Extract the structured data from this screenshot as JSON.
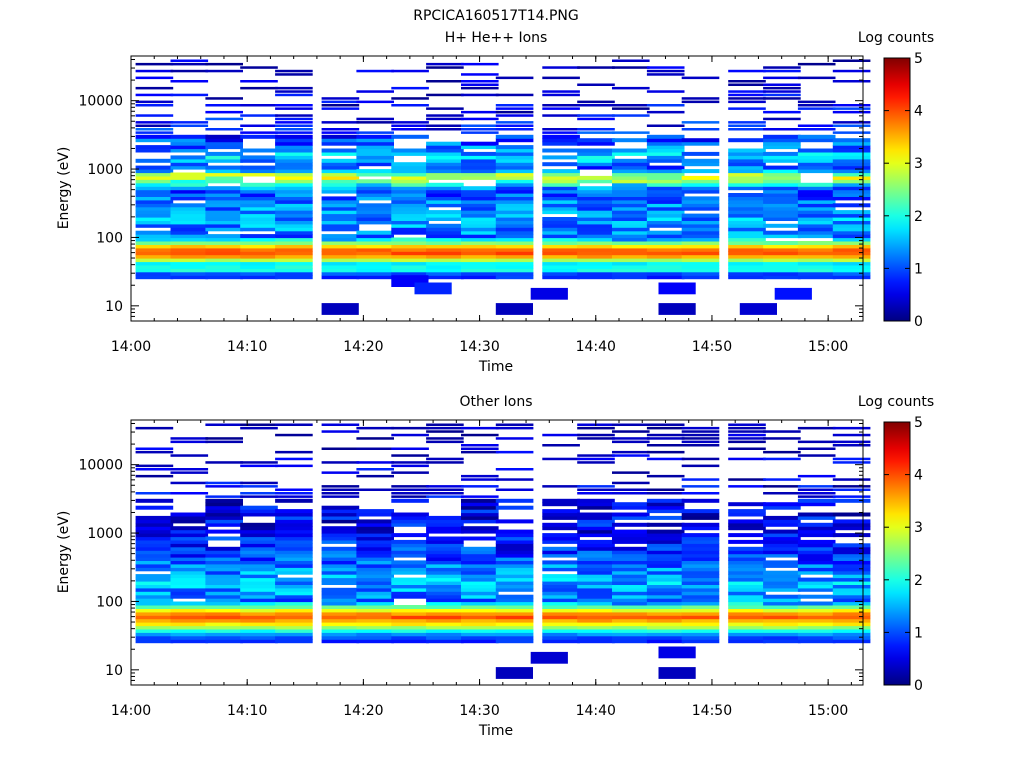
{
  "figure_title": "RPCICA160517T14.PNG",
  "chart_data": [
    {
      "type": "heatmap",
      "title": "H+ He++ Ions",
      "xlabel": "Time",
      "ylabel": "Energy (eV)",
      "yscale": "log",
      "x_range": [
        "14:00",
        "15:03"
      ],
      "y_range": [
        6,
        45000
      ],
      "x_ticks": [
        "14:00",
        "14:10",
        "14:20",
        "14:30",
        "14:40",
        "14:50",
        "15:00"
      ],
      "y_ticks": [
        "10",
        "100",
        "1000",
        "10000"
      ],
      "colorbar": {
        "label": "Log counts",
        "min": 0,
        "max": 5,
        "ticks": [
          "0",
          "1",
          "2",
          "3",
          "4",
          "5"
        ]
      },
      "time_bins": [
        "14:02",
        "14:05",
        "14:08",
        "14:11",
        "14:14",
        "14:18",
        "14:21",
        "14:24",
        "14:27",
        "14:30",
        "14:33",
        "14:37",
        "14:40",
        "14:43",
        "14:46",
        "14:49",
        "14:53",
        "14:56",
        "14:59",
        "15:02"
      ],
      "energy_profile_log_counts": [
        {
          "energy_eV": 9,
          "value": 0.4
        },
        {
          "energy_eV": 18,
          "value": 0.3
        },
        {
          "energy_eV": 30,
          "value": 1.0
        },
        {
          "energy_eV": 35,
          "value": 2.4
        },
        {
          "energy_eV": 40,
          "value": 1.5
        },
        {
          "energy_eV": 45,
          "value": 2.2
        },
        {
          "energy_eV": 50,
          "value": 3.4
        },
        {
          "energy_eV": 60,
          "value": 4.0
        },
        {
          "energy_eV": 70,
          "value": 3.8
        },
        {
          "energy_eV": 100,
          "value": 1.2
        },
        {
          "energy_eV": 200,
          "value": 1.4
        },
        {
          "energy_eV": 500,
          "value": 1.0
        },
        {
          "energy_eV": 700,
          "value": 2.6
        },
        {
          "energy_eV": 800,
          "value": 3.0
        },
        {
          "energy_eV": 1000,
          "value": 1.0
        },
        {
          "energy_eV": 1500,
          "value": 1.6
        },
        {
          "energy_eV": 3000,
          "value": 0.8
        },
        {
          "energy_eV": 10000,
          "value": 0.4
        },
        {
          "energy_eV": 30000,
          "value": 0.2
        }
      ]
    },
    {
      "type": "heatmap",
      "title": "Other Ions",
      "xlabel": "Time",
      "ylabel": "Energy (eV)",
      "yscale": "log",
      "x_range": [
        "14:00",
        "15:03"
      ],
      "y_range": [
        6,
        45000
      ],
      "x_ticks": [
        "14:00",
        "14:10",
        "14:20",
        "14:30",
        "14:40",
        "14:50",
        "15:00"
      ],
      "y_ticks": [
        "10",
        "100",
        "1000",
        "10000"
      ],
      "colorbar": {
        "label": "Log counts",
        "min": 0,
        "max": 5,
        "ticks": [
          "0",
          "1",
          "2",
          "3",
          "4",
          "5"
        ]
      },
      "time_bins": [
        "14:02",
        "14:05",
        "14:08",
        "14:11",
        "14:14",
        "14:18",
        "14:21",
        "14:24",
        "14:27",
        "14:30",
        "14:33",
        "14:37",
        "14:40",
        "14:43",
        "14:46",
        "14:49",
        "14:53",
        "14:56",
        "14:59",
        "15:02"
      ],
      "energy_profile_log_counts": [
        {
          "energy_eV": 9,
          "value": 0.2
        },
        {
          "energy_eV": 18,
          "value": 0.2
        },
        {
          "energy_eV": 30,
          "value": 1.0
        },
        {
          "energy_eV": 35,
          "value": 1.5
        },
        {
          "energy_eV": 40,
          "value": 2.4
        },
        {
          "energy_eV": 50,
          "value": 3.4
        },
        {
          "energy_eV": 60,
          "value": 4.0
        },
        {
          "energy_eV": 70,
          "value": 3.5
        },
        {
          "energy_eV": 100,
          "value": 1.2
        },
        {
          "energy_eV": 200,
          "value": 1.5
        },
        {
          "energy_eV": 500,
          "value": 0.9
        },
        {
          "energy_eV": 1000,
          "value": 0.6
        },
        {
          "energy_eV": 3000,
          "value": 0.5
        },
        {
          "energy_eV": 10000,
          "value": 0.3
        },
        {
          "energy_eV": 30000,
          "value": 0.1
        }
      ]
    }
  ]
}
